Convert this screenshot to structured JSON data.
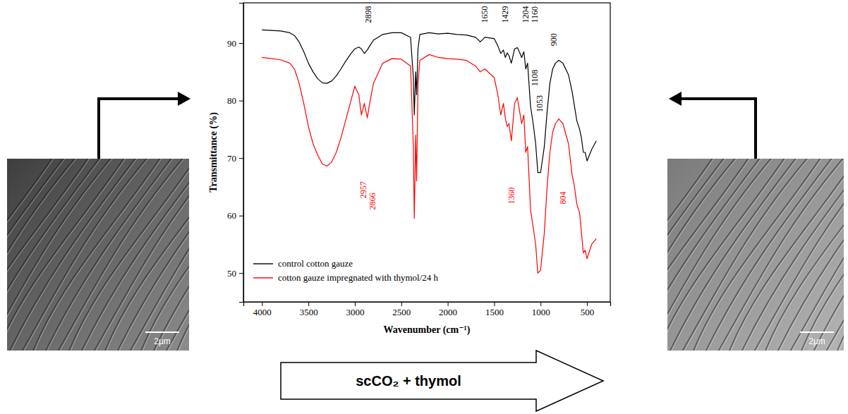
{
  "chart_data": {
    "type": "line",
    "x_label": "Wavenumber (cm⁻¹)",
    "y_label": "Transmittance (%)",
    "x": [
      4000,
      3900,
      3800,
      3700,
      3650,
      3600,
      3550,
      3500,
      3450,
      3400,
      3350,
      3300,
      3250,
      3200,
      3150,
      3100,
      3050,
      3000,
      2957,
      2930,
      2898,
      2866,
      2840,
      2800,
      2700,
      2600,
      2500,
      2400,
      2370,
      2360,
      2345,
      2335,
      2320,
      2300,
      2200,
      2100,
      2000,
      1900,
      1800,
      1700,
      1650,
      1600,
      1500,
      1460,
      1429,
      1400,
      1380,
      1360,
      1340,
      1315,
      1280,
      1250,
      1230,
      1204,
      1180,
      1160,
      1140,
      1108,
      1080,
      1053,
      1030,
      1000,
      960,
      930,
      900,
      870,
      840,
      804,
      760,
      700,
      660,
      640,
      610,
      580,
      560,
      540,
      520,
      500,
      450,
      400
    ],
    "series": [
      {
        "name": "control cotton gauze",
        "color": "#000000",
        "values": [
          92.3,
          92.2,
          92.1,
          91.8,
          91.3,
          90.2,
          88.5,
          86.5,
          85,
          83.8,
          83.1,
          83,
          83.4,
          84.3,
          85.5,
          86.8,
          88,
          89,
          89.3,
          89,
          88.2,
          88.8,
          89.5,
          90.5,
          91.5,
          91.8,
          91.8,
          91,
          84,
          77.5,
          85,
          81,
          89,
          91.5,
          91.8,
          91.6,
          91.7,
          91.5,
          91.4,
          91,
          90.2,
          91,
          90.8,
          89.5,
          88.2,
          88.8,
          87.5,
          88.3,
          87.8,
          86.5,
          89,
          89.2,
          88.5,
          87.5,
          88.5,
          85.5,
          86.5,
          79,
          76,
          72.5,
          67.5,
          67.5,
          72,
          78,
          83,
          85.5,
          86.5,
          87,
          86.5,
          84.5,
          81.5,
          79.5,
          76.5,
          75,
          73.5,
          71,
          71,
          69.5,
          71.5,
          73
        ]
      },
      {
        "name": "cotton gauze impregnated with thymol/24 h",
        "color": "#ff0000",
        "values": [
          87.5,
          87.3,
          87.1,
          86.5,
          85.5,
          83,
          79.5,
          75.5,
          72.5,
          70.5,
          69,
          68.6,
          69.3,
          71,
          73.5,
          76.5,
          79.5,
          82.5,
          81,
          77.5,
          79.5,
          77,
          79.5,
          83,
          86.5,
          87.3,
          87.2,
          86,
          72,
          59.5,
          74,
          66,
          83,
          87,
          88,
          87.5,
          87.3,
          87.2,
          87,
          86,
          85,
          85.5,
          84,
          81,
          77.5,
          79.5,
          77,
          75.5,
          76,
          73,
          79.5,
          80.5,
          78.5,
          76,
          77.5,
          71,
          72,
          61,
          58,
          55,
          50,
          50.5,
          57,
          65,
          71,
          74.5,
          76,
          76.8,
          76,
          72.5,
          67,
          65.5,
          62,
          60.5,
          57,
          53.5,
          54,
          52.5,
          55,
          56
        ]
      }
    ],
    "xlim": [
      4200,
      250
    ],
    "ylim": [
      45,
      97
    ],
    "xticks": [
      4000,
      3500,
      3000,
      2500,
      2000,
      1500,
      1000,
      500
    ],
    "yticks": [
      50,
      60,
      70,
      80,
      90
    ],
    "grid": false,
    "legend": "lower left",
    "annotations": [
      {
        "text": "2898",
        "x": 2898,
        "y": 93.5,
        "color": "#000000"
      },
      {
        "text": "1650",
        "x": 1650,
        "y": 93.5,
        "color": "#000000"
      },
      {
        "text": "1429",
        "x": 1429,
        "y": 93.5,
        "color": "#000000"
      },
      {
        "text": "1204",
        "x": 1204,
        "y": 93.5,
        "color": "#000000"
      },
      {
        "text": "1160",
        "x": 1160,
        "y": 93.5,
        "color": "#000000"
      },
      {
        "text": "1108",
        "x": 1108,
        "y": 82.5,
        "color": "#000000"
      },
      {
        "text": "1053",
        "x": 1053,
        "y": 78,
        "color": "#000000"
      },
      {
        "text": "900",
        "x": 900,
        "y": 89.5,
        "color": "#000000"
      },
      {
        "text": "2957",
        "x": 2957,
        "y": 63,
        "color": "#ff0000"
      },
      {
        "text": "2866",
        "x": 2866,
        "y": 61,
        "color": "#ff0000"
      },
      {
        "text": "1360",
        "x": 1360,
        "y": 62,
        "color": "#ff0000"
      },
      {
        "text": "804",
        "x": 804,
        "y": 62,
        "color": "#ff0000"
      }
    ]
  },
  "figure": {
    "arrow_label": "scCO₂ + thymol",
    "images": [
      {
        "scale_bar": "2μm"
      },
      {
        "scale_bar": "2μm"
      }
    ]
  }
}
